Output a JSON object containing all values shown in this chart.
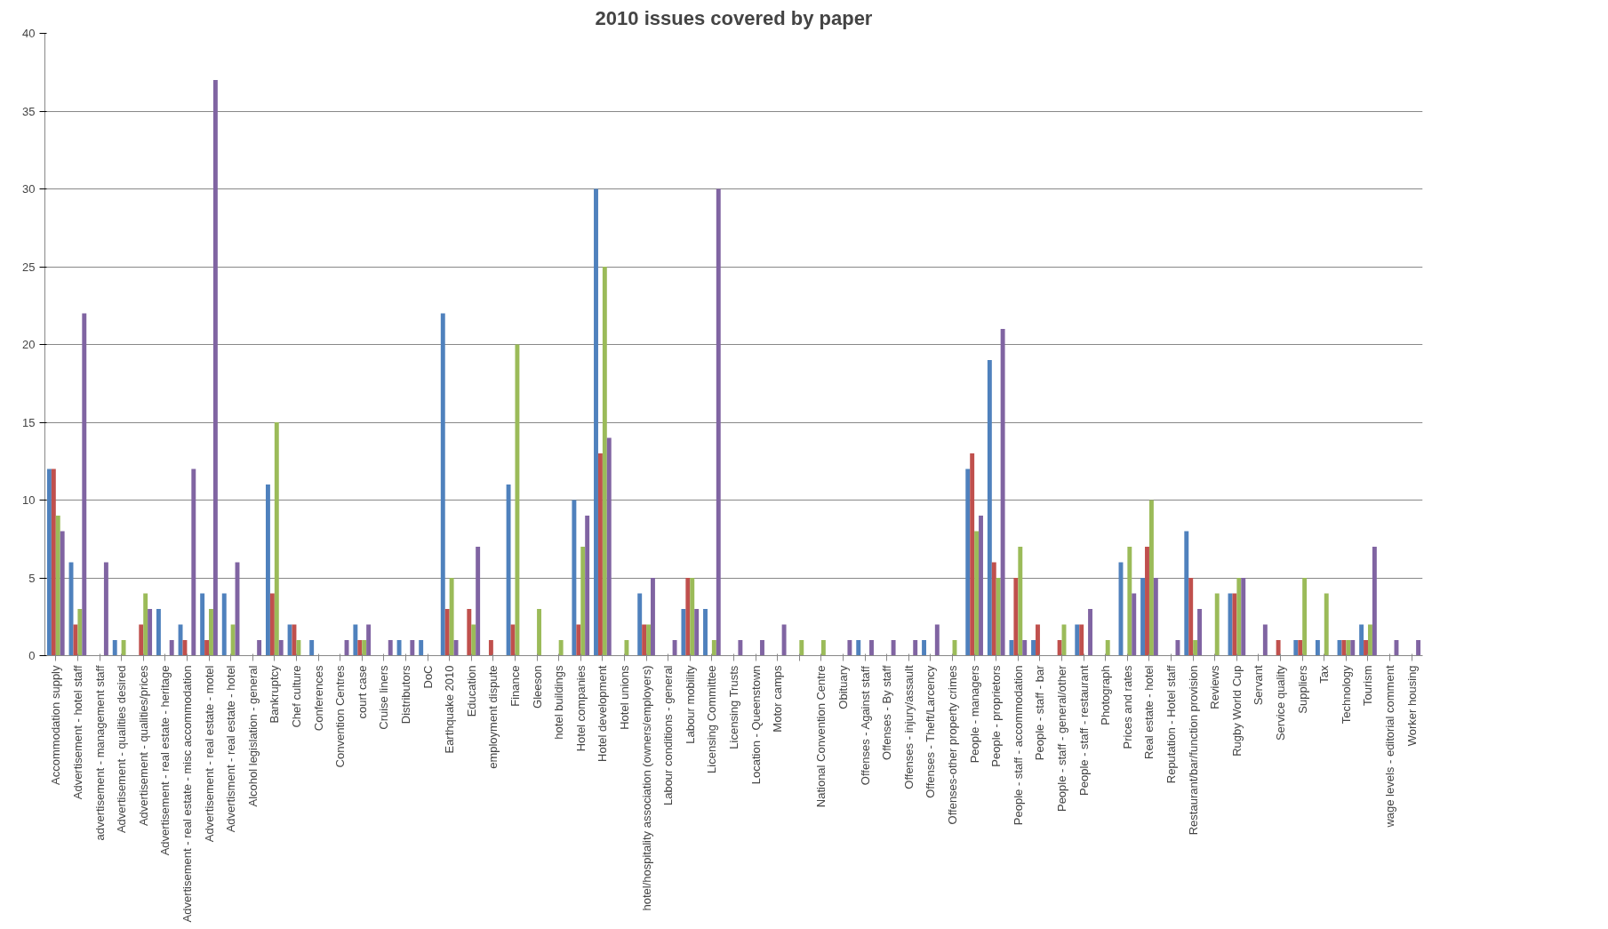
{
  "chart_data": {
    "type": "bar",
    "title": "2010 issues covered by paper",
    "categories": [
      "Accommodation supply",
      "Advertisement - hotel staff",
      "advertisement - management staff",
      "Advertisement - qualities desired",
      "Advertisement - qualities/prices",
      "Advertisement - real estate - heritage",
      "Advertisement - real estate - misc accommodation",
      "Advertisement - real estate - motel",
      "Advertisment - real estate - hotel",
      "Alcohol legislation - general",
      "Bankruptcy",
      "Chef culture",
      "Conferences",
      "Convention Centres",
      "court case",
      "Cruise liners",
      "Distributors",
      "DoC",
      "Earthquake 2010",
      "Education",
      "employment dispute",
      "Finance",
      "Gleeson",
      "hotel buildings",
      "Hotel companies",
      "Hotel development",
      "Hotel unions",
      "hotel/hospitality association (owners/employers)",
      "Labour conditions - general",
      "Labour mobility",
      "Licensing Committee",
      "Licensing Trusts",
      "Location - Queenstown",
      "Motor camps",
      null,
      "National Convention Centre",
      "Obituary",
      "Offenses - Against staff",
      "Offenses - By staff",
      "Offenses - injury/assault",
      "Offenses - Theft/Larcency",
      "Offenses-other property crimes",
      "People - managers",
      "People - proprietors",
      "People - staff - accommodation",
      "People - staff - bar",
      "People - staff - general/other",
      "People - staff - restaurant",
      "Photograph",
      "Prices and rates",
      "Real estate - hotel",
      "Reputation - Hotel staff",
      "Restaurant/bar/function provision",
      "Reviews",
      "Rugby World Cup",
      "Servant",
      "Service quality",
      "Suppliers",
      "Tax",
      "Technology",
      "Tourism",
      "wage levels - editorial comment",
      "Worker housing"
    ],
    "series": [
      {
        "color": "#4f81bd",
        "values": [
          12,
          6,
          0,
          1,
          0,
          3,
          2,
          4,
          4,
          0,
          11,
          2,
          1,
          0,
          2,
          0,
          1,
          1,
          22,
          0,
          0,
          11,
          0,
          0,
          10,
          30,
          0,
          4,
          0,
          3,
          3,
          0,
          0,
          0,
          0,
          0,
          0,
          1,
          0,
          0,
          1,
          0,
          12,
          19,
          1,
          1,
          0,
          2,
          0,
          6,
          5,
          0,
          8,
          0,
          4,
          0,
          0,
          1,
          1,
          1,
          2,
          0,
          0
        ]
      },
      {
        "color": "#c0504d",
        "values": [
          12,
          2,
          0,
          0,
          2,
          0,
          1,
          1,
          0,
          0,
          4,
          2,
          0,
          0,
          1,
          0,
          0,
          0,
          3,
          3,
          1,
          2,
          0,
          0,
          2,
          13,
          0,
          2,
          0,
          5,
          0,
          0,
          0,
          0,
          0,
          0,
          0,
          0,
          0,
          0,
          0,
          0,
          13,
          6,
          5,
          2,
          1,
          2,
          0,
          0,
          7,
          0,
          5,
          0,
          4,
          0,
          1,
          1,
          0,
          1,
          1,
          0,
          0
        ]
      },
      {
        "color": "#9bbb59",
        "values": [
          9,
          3,
          0,
          1,
          4,
          0,
          0,
          3,
          2,
          0,
          15,
          1,
          0,
          0,
          1,
          0,
          0,
          0,
          5,
          2,
          0,
          20,
          3,
          1,
          7,
          25,
          1,
          2,
          0,
          5,
          1,
          0,
          0,
          0,
          1,
          1,
          0,
          0,
          0,
          0,
          0,
          1,
          8,
          5,
          7,
          0,
          2,
          0,
          1,
          7,
          10,
          0,
          1,
          4,
          5,
          0,
          0,
          5,
          4,
          1,
          2,
          0,
          0
        ]
      },
      {
        "color": "#8064a2",
        "values": [
          8,
          22,
          6,
          0,
          3,
          1,
          12,
          37,
          6,
          1,
          1,
          0,
          0,
          1,
          2,
          1,
          1,
          0,
          1,
          7,
          0,
          0,
          0,
          0,
          9,
          14,
          0,
          5,
          1,
          3,
          30,
          1,
          1,
          2,
          0,
          0,
          1,
          1,
          1,
          1,
          2,
          0,
          9,
          21,
          1,
          0,
          0,
          3,
          0,
          4,
          5,
          1,
          3,
          0,
          5,
          2,
          0,
          0,
          0,
          1,
          7,
          1,
          1
        ]
      }
    ],
    "ylim": [
      0,
      40
    ],
    "yticks": [
      0,
      5,
      10,
      15,
      20,
      25,
      30,
      35,
      40
    ],
    "grid": "y"
  }
}
